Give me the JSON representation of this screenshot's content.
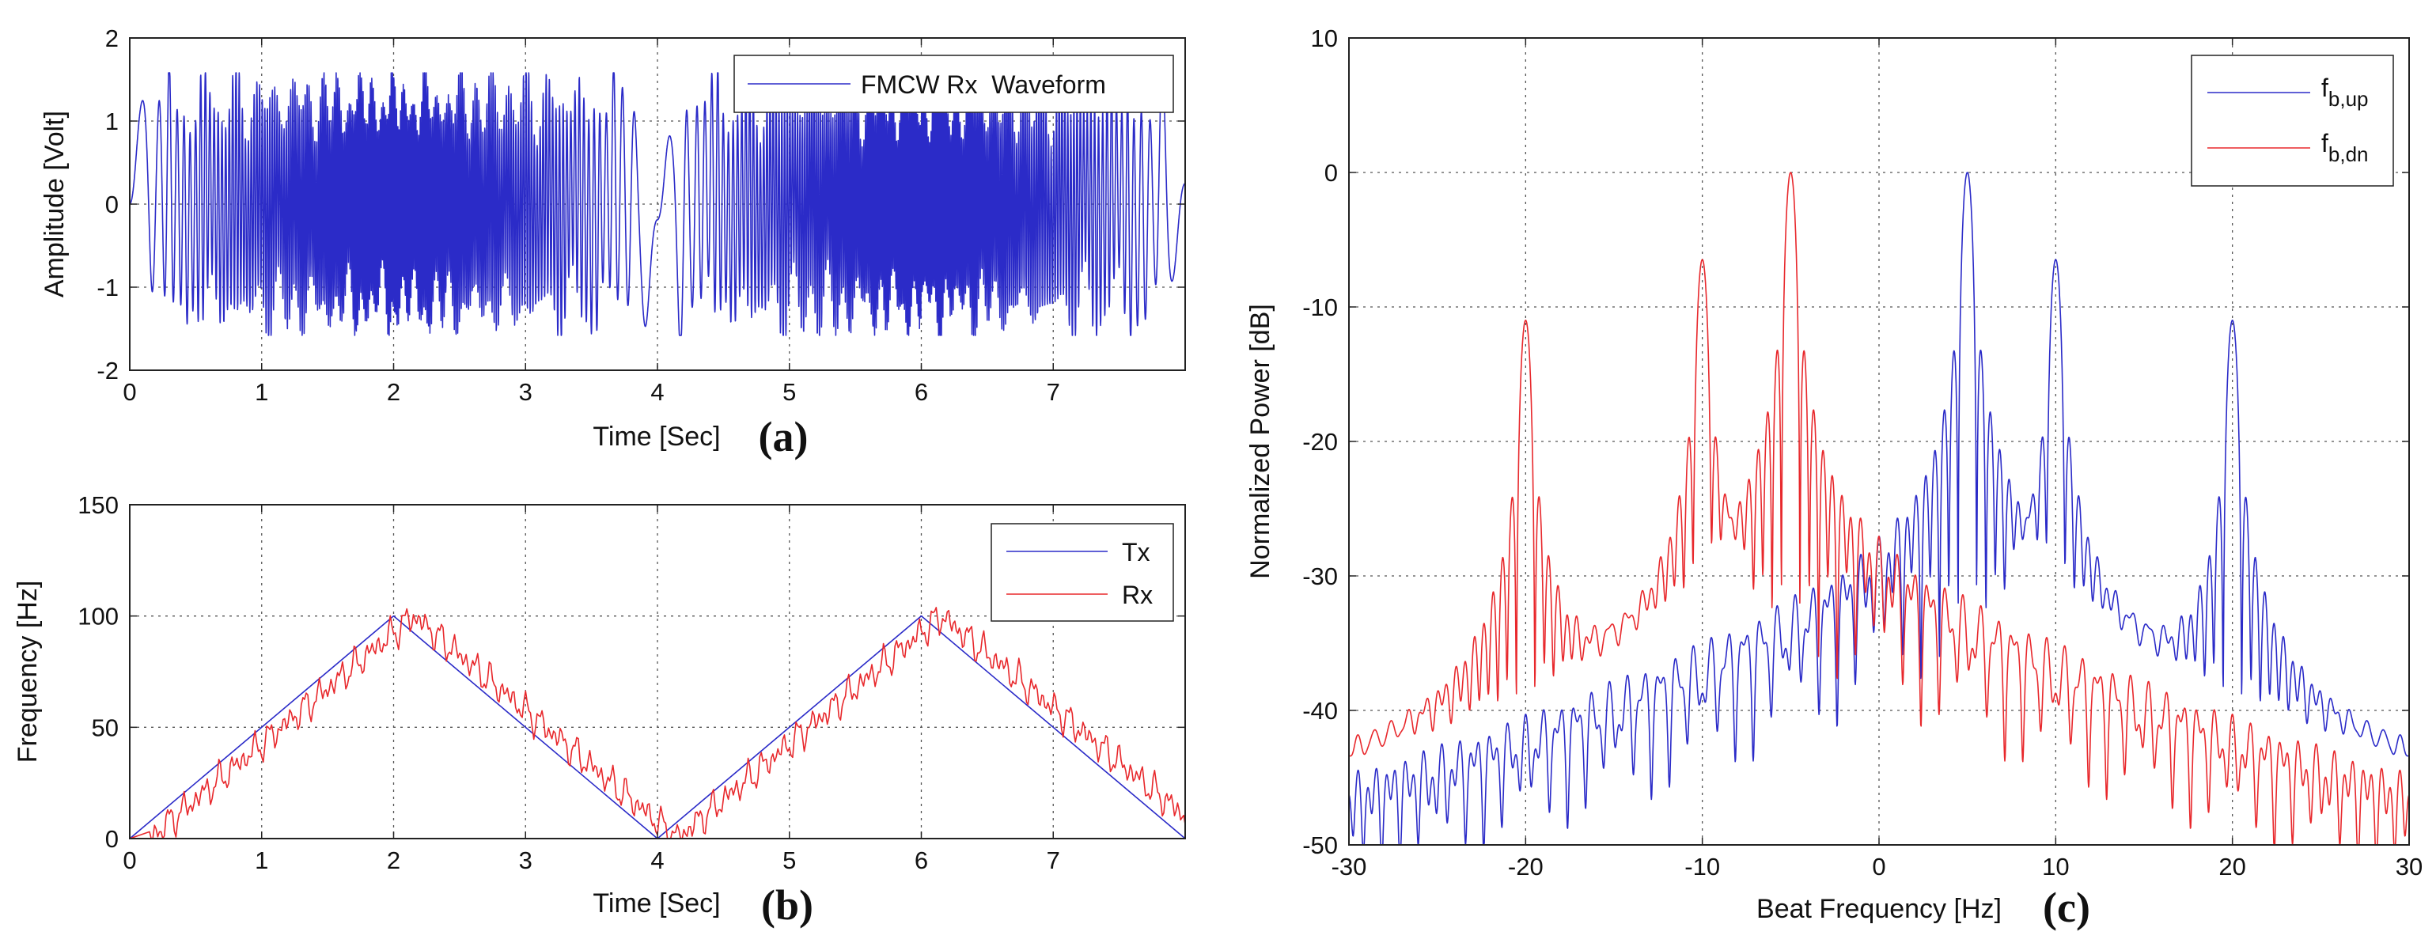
{
  "colors": {
    "blue": "#2b2bc8",
    "red": "#e8282c",
    "axis": "#222222"
  },
  "chart_data": [
    {
      "id": "a",
      "type": "line",
      "panel_label": "(a)",
      "xlabel": "Time [Sec]",
      "ylabel": "Amplitude [Volt]",
      "xlim": [
        0,
        8
      ],
      "ylim": [
        -2,
        2
      ],
      "xticks": [
        0,
        1,
        2,
        3,
        4,
        5,
        6,
        7
      ],
      "xtick_labels": [
        "0",
        "1",
        "2",
        "3",
        "4",
        "5",
        "6",
        "7"
      ],
      "yticks": [
        -2,
        -1,
        0,
        1,
        2
      ],
      "ytick_labels": [
        "-2",
        "-1",
        "0",
        "1",
        "2"
      ],
      "grid": true,
      "legend": "top-right",
      "series": [
        {
          "name": "FMCW Rx  Waveform",
          "color": "#2b2bc8",
          "description_values": {
            "amplitude_peak": 1.55,
            "sweep_period": 4,
            "f_min": 0,
            "f_max": 100
          }
        }
      ]
    },
    {
      "id": "b",
      "type": "line",
      "panel_label": "(b)",
      "xlabel": "Time [Sec]",
      "ylabel": "Frequency [Hz]",
      "xlim": [
        0,
        8
      ],
      "ylim": [
        0,
        150
      ],
      "xticks": [
        0,
        1,
        2,
        3,
        4,
        5,
        6,
        7
      ],
      "xtick_labels": [
        "0",
        "1",
        "2",
        "3",
        "4",
        "5",
        "6",
        "7"
      ],
      "yticks": [
        0,
        50,
        100,
        150
      ],
      "ytick_labels": [
        "0",
        "50",
        "100",
        "150"
      ],
      "grid": true,
      "legend": "top-right",
      "series": [
        {
          "name": "Tx",
          "color": "#2b2bc8",
          "x": [
            0,
            2,
            4,
            6,
            8
          ],
          "y": [
            0,
            100,
            0,
            100,
            0
          ]
        },
        {
          "name": "Rx",
          "color": "#e8282c",
          "x": [
            0.15,
            2.15,
            4.15,
            6.15,
            8
          ],
          "y": [
            0,
            100,
            0,
            100,
            10
          ]
        }
      ]
    },
    {
      "id": "c",
      "type": "line",
      "panel_label": "(c)",
      "xlabel": "Beat Frequency [Hz]",
      "ylabel": "Normalized Power [dB]",
      "xlim": [
        -30,
        30
      ],
      "ylim": [
        -50,
        10
      ],
      "xticks": [
        -30,
        -20,
        -10,
        0,
        10,
        20,
        30
      ],
      "xtick_labels": [
        "-30",
        "-20",
        "-10",
        "0",
        "10",
        "20",
        "30"
      ],
      "yticks": [
        -50,
        -40,
        -30,
        -20,
        -10,
        0,
        10
      ],
      "ytick_labels": [
        "-50",
        "-40",
        "-30",
        "-20",
        "-10",
        "0",
        "10"
      ],
      "grid": true,
      "legend": "top-right",
      "series": [
        {
          "name": "f",
          "sub": "b,up",
          "color": "#2b2bc8",
          "peaks": [
            {
              "x": 5,
              "y": 0
            },
            {
              "x": 10,
              "y": -6.5
            },
            {
              "x": 20,
              "y": -11
            }
          ]
        },
        {
          "name": "f",
          "sub": "b,dn",
          "color": "#e8282c",
          "peaks": [
            {
              "x": -5,
              "y": 0
            },
            {
              "x": -10,
              "y": -6.5
            },
            {
              "x": -20,
              "y": -11
            }
          ]
        }
      ]
    }
  ]
}
